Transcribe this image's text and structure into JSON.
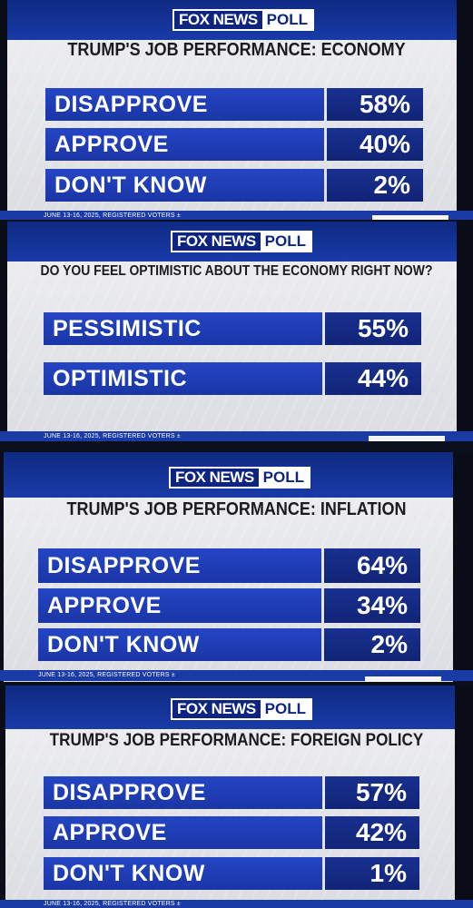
{
  "logo": {
    "brand": "FOX NEWS",
    "poll": "POLL"
  },
  "footer_text": "JUNE 13-16, 2025, REGISTERED VOTERS  ±",
  "panels": [
    {
      "question": "TRUMP'S JOB PERFORMANCE: ECONOMY",
      "rows": [
        {
          "label": "DISAPPROVE",
          "value": "58%"
        },
        {
          "label": "APPROVE",
          "value": "40%"
        },
        {
          "label": "DON'T KNOW",
          "value": "2%"
        }
      ]
    },
    {
      "question": "DO YOU FEEL OPTIMISTIC ABOUT THE ECONOMY RIGHT NOW?",
      "rows": [
        {
          "label": "PESSIMISTIC",
          "value": "55%"
        },
        {
          "label": "OPTIMISTIC",
          "value": "44%"
        }
      ]
    },
    {
      "question": "TRUMP'S JOB PERFORMANCE: INFLATION",
      "rows": [
        {
          "label": "DISAPPROVE",
          "value": "64%"
        },
        {
          "label": "APPROVE",
          "value": "34%"
        },
        {
          "label": "DON'T KNOW",
          "value": "2%"
        }
      ]
    },
    {
      "question": "TRUMP'S JOB PERFORMANCE: FOREIGN POLICY",
      "rows": [
        {
          "label": "DISAPPROVE",
          "value": "57%"
        },
        {
          "label": "APPROVE",
          "value": "42%"
        },
        {
          "label": "DON'T KNOW",
          "value": "1%"
        }
      ]
    }
  ],
  "colors": {
    "label_blue": "#2445c4",
    "value_blue": "#112477",
    "header_blue": "#193ba8"
  }
}
